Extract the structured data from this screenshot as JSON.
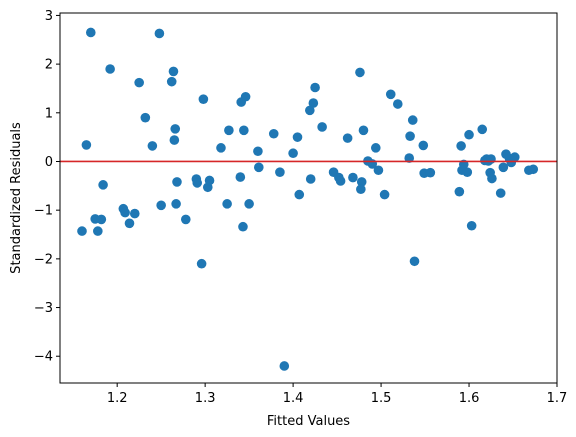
{
  "chart_data": {
    "type": "scatter",
    "xlabel": "Fitted Values",
    "ylabel": "Standardized Residuals",
    "xlim": [
      1.135,
      1.7
    ],
    "ylim": [
      -4.55,
      3.05
    ],
    "xticks": [
      1.2,
      1.3,
      1.4,
      1.5,
      1.6,
      1.7
    ],
    "xtick_labels": [
      "1.2",
      "1.3",
      "1.4",
      "1.5",
      "1.6",
      "1.7"
    ],
    "yticks": [
      -4,
      -3,
      -2,
      -1,
      0,
      1,
      2,
      3
    ],
    "ytick_labels": [
      "−4",
      "−3",
      "−2",
      "−1",
      "0",
      "1",
      "2",
      "3"
    ],
    "grid": false,
    "legend": "none",
    "point_color": "#1f77b4",
    "reference_line": {
      "y": 0,
      "color": "#d62728"
    },
    "points": [
      [
        1.16,
        -1.43
      ],
      [
        1.165,
        0.34
      ],
      [
        1.17,
        2.65
      ],
      [
        1.175,
        -1.18
      ],
      [
        1.178,
        -1.43
      ],
      [
        1.182,
        -1.19
      ],
      [
        1.184,
        -0.48
      ],
      [
        1.192,
        1.9
      ],
      [
        1.207,
        -0.97
      ],
      [
        1.209,
        -1.05
      ],
      [
        1.214,
        -1.27
      ],
      [
        1.22,
        -1.07
      ],
      [
        1.225,
        1.62
      ],
      [
        1.232,
        0.9
      ],
      [
        1.24,
        0.32
      ],
      [
        1.248,
        2.63
      ],
      [
        1.25,
        -0.9
      ],
      [
        1.262,
        1.64
      ],
      [
        1.264,
        1.85
      ],
      [
        1.266,
        0.67
      ],
      [
        1.265,
        0.44
      ],
      [
        1.267,
        -0.87
      ],
      [
        1.268,
        -0.42
      ],
      [
        1.278,
        -1.19
      ],
      [
        1.29,
        -0.36
      ],
      [
        1.291,
        -0.44
      ],
      [
        1.296,
        -2.1
      ],
      [
        1.298,
        1.28
      ],
      [
        1.303,
        -0.53
      ],
      [
        1.305,
        -0.39
      ],
      [
        1.318,
        0.28
      ],
      [
        1.325,
        -0.87
      ],
      [
        1.327,
        0.64
      ],
      [
        1.34,
        -0.32
      ],
      [
        1.341,
        1.22
      ],
      [
        1.343,
        -1.34
      ],
      [
        1.344,
        0.64
      ],
      [
        1.346,
        1.33
      ],
      [
        1.35,
        -0.87
      ],
      [
        1.36,
        0.21
      ],
      [
        1.361,
        -0.12
      ],
      [
        1.378,
        0.57
      ],
      [
        1.385,
        -0.22
      ],
      [
        1.39,
        -4.2
      ],
      [
        1.4,
        0.17
      ],
      [
        1.405,
        0.5
      ],
      [
        1.407,
        -0.68
      ],
      [
        1.419,
        1.05
      ],
      [
        1.42,
        -0.36
      ],
      [
        1.423,
        1.2
      ],
      [
        1.425,
        1.52
      ],
      [
        1.433,
        0.71
      ],
      [
        1.446,
        -0.22
      ],
      [
        1.452,
        -0.33
      ],
      [
        1.454,
        -0.4
      ],
      [
        1.462,
        0.48
      ],
      [
        1.468,
        -0.33
      ],
      [
        1.476,
        1.83
      ],
      [
        1.478,
        -0.42
      ],
      [
        1.477,
        -0.57
      ],
      [
        1.48,
        0.64
      ],
      [
        1.485,
        0.01
      ],
      [
        1.49,
        -0.05
      ],
      [
        1.494,
        0.28
      ],
      [
        1.497,
        -0.18
      ],
      [
        1.504,
        -0.68
      ],
      [
        1.511,
        1.38
      ],
      [
        1.519,
        1.18
      ],
      [
        1.532,
        0.07
      ],
      [
        1.533,
        0.52
      ],
      [
        1.536,
        0.85
      ],
      [
        1.538,
        -2.05
      ],
      [
        1.548,
        0.33
      ],
      [
        1.549,
        -0.24
      ],
      [
        1.556,
        -0.23
      ],
      [
        1.589,
        -0.62
      ],
      [
        1.591,
        0.32
      ],
      [
        1.592,
        -0.18
      ],
      [
        1.594,
        -0.06
      ],
      [
        1.598,
        -0.22
      ],
      [
        1.6,
        0.55
      ],
      [
        1.603,
        -1.32
      ],
      [
        1.615,
        0.66
      ],
      [
        1.618,
        0.02
      ],
      [
        1.62,
        0.05
      ],
      [
        1.622,
        0.01
      ],
      [
        1.624,
        -0.23
      ],
      [
        1.625,
        0.05
      ],
      [
        1.626,
        -0.35
      ],
      [
        1.636,
        -0.65
      ],
      [
        1.639,
        -0.12
      ],
      [
        1.642,
        0.15
      ],
      [
        1.646,
        0.06
      ],
      [
        1.648,
        -0.02
      ],
      [
        1.652,
        0.09
      ],
      [
        1.668,
        -0.18
      ],
      [
        1.673,
        -0.16
      ]
    ]
  }
}
